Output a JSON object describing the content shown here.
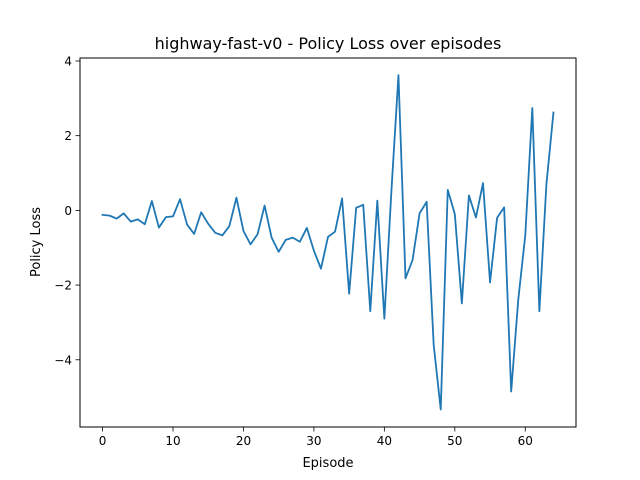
{
  "chart_data": {
    "type": "line",
    "title": "highway-fast-v0 - Policy Loss over episodes",
    "xlabel": "Episode",
    "ylabel": "Policy Loss",
    "xlim": [
      -3.2,
      67.2
    ],
    "ylim": [
      -5.8,
      4.08
    ],
    "xticks": [
      0,
      10,
      20,
      30,
      40,
      50,
      60
    ],
    "yticks": [
      -4,
      -2,
      0,
      2,
      4
    ],
    "grid": false,
    "legend": "none",
    "line_color": "#1f77b4",
    "series": [
      {
        "x": [
          0,
          1,
          2,
          3,
          4,
          5,
          6,
          7,
          8,
          9,
          10,
          11,
          12,
          13,
          14,
          15,
          16,
          17,
          18,
          19,
          20,
          21,
          22,
          23,
          24,
          25,
          26,
          27,
          28,
          29,
          30,
          31,
          32,
          33,
          34,
          35,
          36,
          37,
          38,
          39,
          40,
          41,
          42,
          43,
          44,
          45,
          46,
          47,
          48,
          49,
          50,
          51,
          52,
          53,
          54,
          55,
          56,
          57,
          58,
          59,
          60,
          61,
          62,
          63,
          64
        ],
        "values": [
          -0.12,
          -0.14,
          -0.22,
          -0.08,
          -0.3,
          -0.24,
          -0.37,
          0.25,
          -0.46,
          -0.18,
          -0.16,
          0.3,
          -0.38,
          -0.63,
          -0.05,
          -0.36,
          -0.6,
          -0.67,
          -0.42,
          0.34,
          -0.55,
          -0.91,
          -0.64,
          0.13,
          -0.73,
          -1.11,
          -0.79,
          -0.73,
          -0.84,
          -0.47,
          -1.08,
          -1.56,
          -0.71,
          -0.57,
          0.32,
          -2.23,
          0.07,
          0.15,
          -2.7,
          0.26,
          -2.9,
          0.52,
          3.62,
          -1.82,
          -1.33,
          -0.08,
          0.23,
          -3.6,
          -5.33,
          0.55,
          -0.1,
          -2.49,
          0.4,
          -0.19,
          0.73,
          -1.93,
          -0.2,
          0.08,
          -4.85,
          -2.4,
          -0.67,
          2.74,
          -2.7,
          0.7,
          2.62
        ]
      }
    ]
  }
}
